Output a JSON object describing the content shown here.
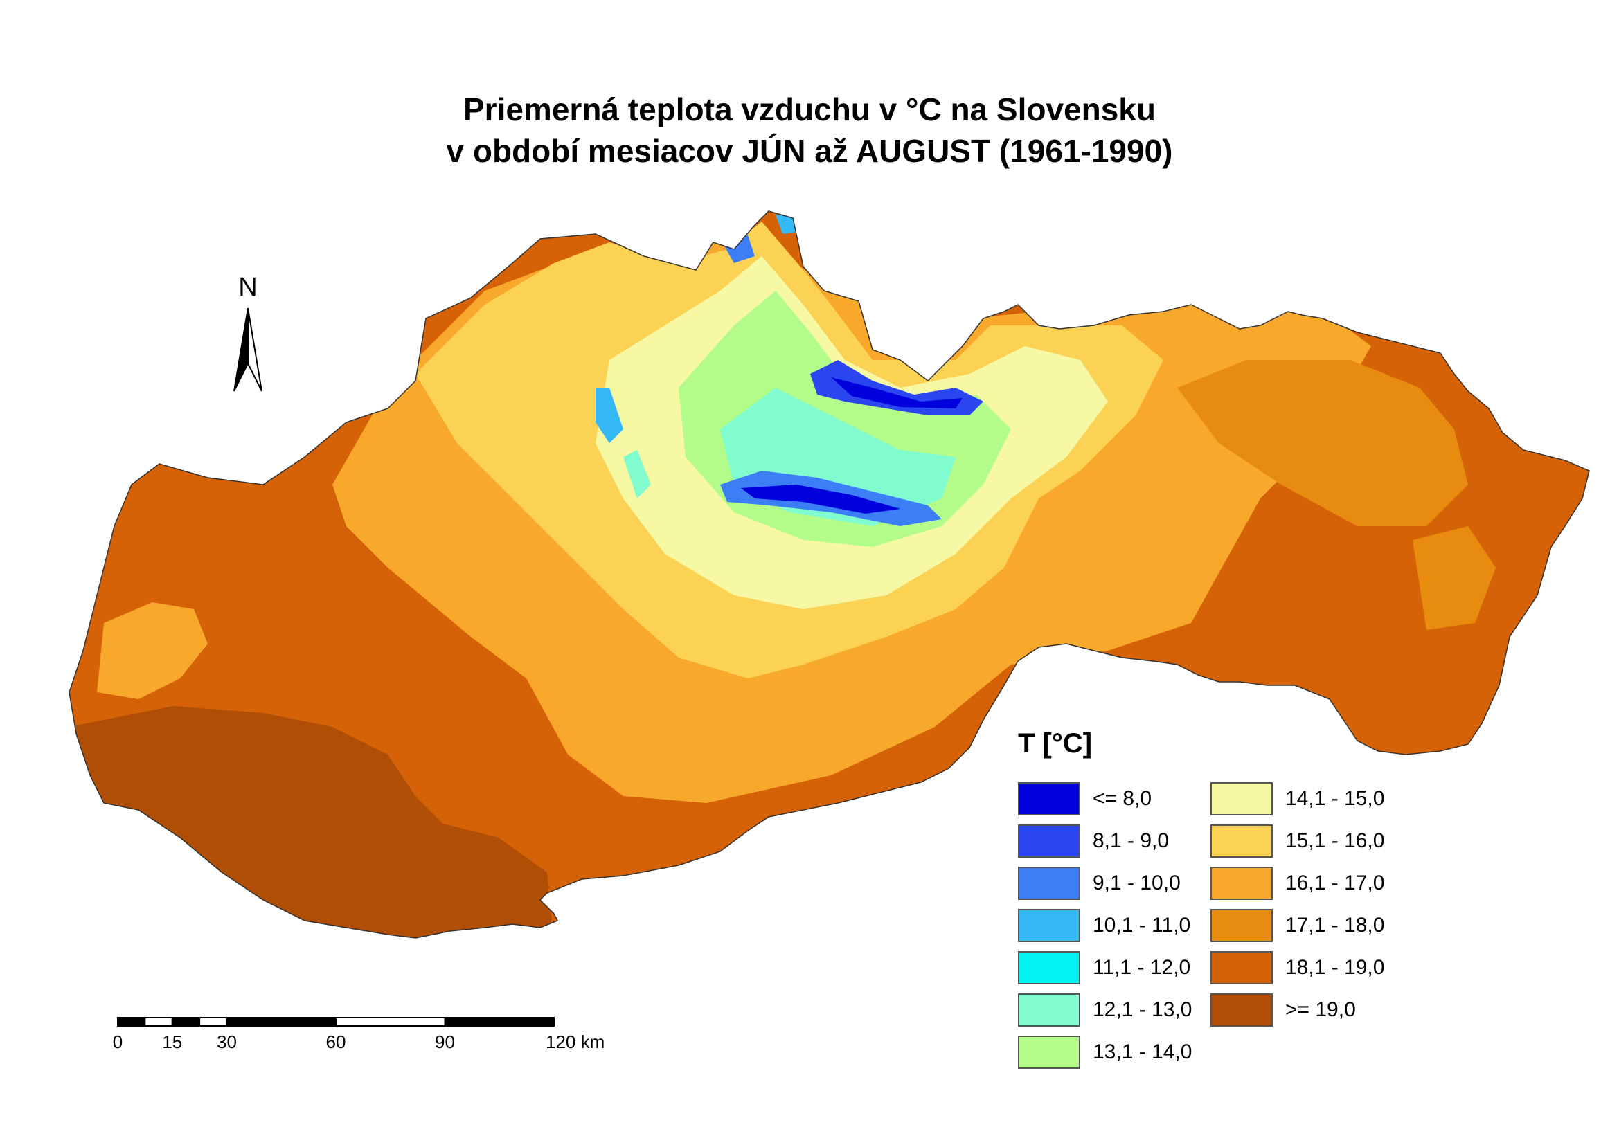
{
  "title": {
    "line1": "Priemerná teplota vzduchu v °C na Slovensku",
    "line2": "v období mesiacov JÚN až AUGUST (1961-1990)"
  },
  "north_arrow": {
    "label": "N"
  },
  "scale_bar": {
    "labels": [
      "0",
      "15",
      "30",
      "60",
      "90",
      "120 km"
    ],
    "values_km": [
      0,
      15,
      30,
      60,
      90,
      120
    ]
  },
  "legend": {
    "title": "T [°C]",
    "items": [
      {
        "label": "<= 8,0",
        "color": "#0000dc"
      },
      {
        "label": "8,1 - 9,0",
        "color": "#2a46f0"
      },
      {
        "label": "9,1 - 10,0",
        "color": "#3c7ef6"
      },
      {
        "label": "10,1 - 11,0",
        "color": "#34b8f6"
      },
      {
        "label": "11,1 - 12,0",
        "color": "#00f2f2"
      },
      {
        "label": "12,1 - 13,0",
        "color": "#80fcce"
      },
      {
        "label": "13,1 - 14,0",
        "color": "#b4fc8a"
      },
      {
        "label": "14,1 - 15,0",
        "color": "#f6f8a4"
      },
      {
        "label": "15,1 - 16,0",
        "color": "#fcd254"
      },
      {
        "label": "16,1 - 17,0",
        "color": "#f8a82a"
      },
      {
        "label": "17,1 - 18,0",
        "color": "#e88c10"
      },
      {
        "label": "18,1 - 19,0",
        "color": "#d66208"
      },
      {
        "label": ">= 19,0",
        "color": "#b04e06"
      }
    ]
  }
}
